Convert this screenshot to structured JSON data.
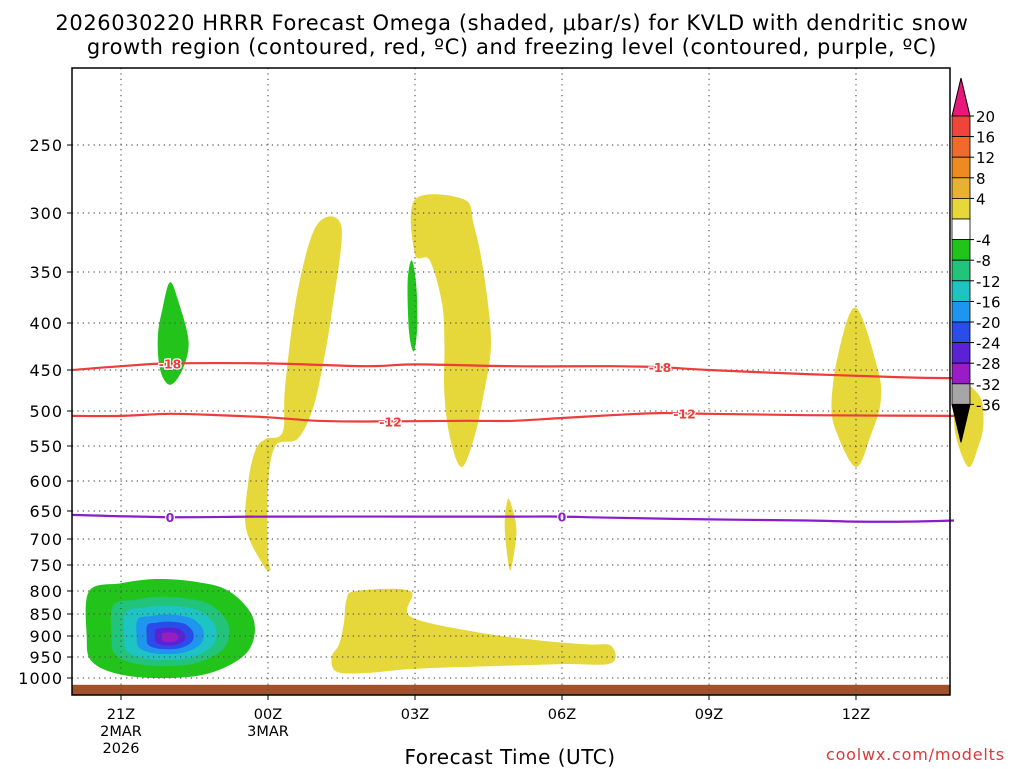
{
  "title_line1": "2026030220 HRRR Forecast Omega (shaded, μbar/s) for KVLD with dendritic snow",
  "title_line2": "growth region (contoured, red, ºC) and freezing level (contoured, purple, ºC)",
  "x_axis_label": "Forecast Time (UTC)",
  "credit": "coolwx.com/modelts",
  "chart_data": {
    "type": "time-height cross section (shaded + contours)",
    "x_unit": "forecast hour from 20Z 2 Mar 2026",
    "x_range": [
      0,
      18
    ],
    "y_unit": "hPa",
    "y_range": [
      1000,
      200
    ],
    "y_ticks": [
      250,
      300,
      350,
      400,
      450,
      500,
      550,
      600,
      650,
      700,
      750,
      800,
      850,
      900,
      950,
      1000
    ],
    "x_ticks": [
      {
        "hour": 1,
        "lines": [
          "21Z",
          "2MAR",
          "2026"
        ]
      },
      {
        "hour": 4,
        "lines": [
          "00Z",
          "3MAR"
        ]
      },
      {
        "hour": 7,
        "lines": [
          "03Z"
        ]
      },
      {
        "hour": 10,
        "lines": [
          "06Z"
        ]
      },
      {
        "hour": 13,
        "lines": [
          "09Z"
        ]
      },
      {
        "hour": 16,
        "lines": [
          "12Z"
        ]
      }
    ],
    "colorbar": {
      "labels": [
        "20",
        "16",
        "12",
        "8",
        "4",
        "-4",
        "-8",
        "-12",
        "-16",
        "-20",
        "-24",
        "-28",
        "-32",
        "-36"
      ],
      "bins": [
        {
          "color": "#e8177a",
          "range": "> 20",
          "shape": "triangle-top"
        },
        {
          "color": "#f0443a",
          "range": "16 to 20"
        },
        {
          "color": "#f06a2c",
          "range": "12 to 16"
        },
        {
          "color": "#ee8a22",
          "range": "8 to 12"
        },
        {
          "color": "#e8b22e",
          "range": "4 to 8"
        },
        {
          "color": "#e6d83a",
          "range": "-4 to 4 band edge"
        },
        {
          "color": "#ffffff",
          "range": "-4 to 4"
        },
        {
          "color": "#22c41c",
          "range": "-8 to -4"
        },
        {
          "color": "#22c37a",
          "range": "-12 to -8"
        },
        {
          "color": "#1ec4c4",
          "range": "-16 to -12"
        },
        {
          "color": "#1e96ee",
          "range": "-20 to -16"
        },
        {
          "color": "#2a4ce8",
          "range": "-24 to -20"
        },
        {
          "color": "#5a22d4",
          "range": "-28 to -24"
        },
        {
          "color": "#9a1cc6",
          "range": "-32 to -28"
        },
        {
          "color": "#a6a6a6",
          "range": "-36 to -32"
        },
        {
          "color": "#000000",
          "range": "< -36",
          "shape": "triangle-bottom"
        }
      ]
    },
    "contours": [
      {
        "name": "dgz-18C",
        "label": "-18",
        "color": "#ee3b3b",
        "label_hours": [
          2.0,
          12.0
        ],
        "points": [
          [
            0,
            450
          ],
          [
            1,
            446
          ],
          [
            2,
            443
          ],
          [
            4,
            443
          ],
          [
            6,
            446
          ],
          [
            7,
            444
          ],
          [
            9,
            446
          ],
          [
            11,
            446
          ],
          [
            12,
            447
          ],
          [
            13,
            450
          ],
          [
            15,
            455
          ],
          [
            17,
            459
          ],
          [
            18,
            460
          ]
        ]
      },
      {
        "name": "dgz-12C",
        "label": "-12",
        "color": "#ee3b3b",
        "label_hours": [
          6.5,
          12.5
        ],
        "points": [
          [
            0,
            507
          ],
          [
            1,
            507
          ],
          [
            2,
            504
          ],
          [
            3,
            506
          ],
          [
            4,
            509
          ],
          [
            5,
            514
          ],
          [
            6,
            515
          ],
          [
            8,
            514
          ],
          [
            9,
            514
          ],
          [
            10,
            510
          ],
          [
            11,
            506
          ],
          [
            12,
            503
          ],
          [
            13,
            504
          ],
          [
            15,
            506
          ],
          [
            18,
            507
          ]
        ]
      },
      {
        "name": "freezing-level",
        "label": "0",
        "color": "#8b1cc8",
        "label_hours": [
          2.0,
          10.0
        ],
        "points": [
          [
            0,
            657
          ],
          [
            2,
            661
          ],
          [
            4,
            660
          ],
          [
            7,
            660
          ],
          [
            9,
            660
          ],
          [
            10,
            660
          ],
          [
            11,
            662
          ],
          [
            13,
            665
          ],
          [
            15,
            667
          ],
          [
            16,
            669
          ],
          [
            17,
            669
          ],
          [
            18,
            667
          ]
        ]
      }
    ],
    "shaded_regions": [
      {
        "name": "ascent-green-upper-left",
        "omega_bin": "-8 to -4",
        "color": "#22c41c",
        "polygon": [
          [
            2.0,
            360
          ],
          [
            2.18,
            380
          ],
          [
            2.38,
            420
          ],
          [
            2.25,
            450
          ],
          [
            2.0,
            468
          ],
          [
            1.8,
            450
          ],
          [
            1.75,
            415
          ],
          [
            1.85,
            385
          ]
        ]
      },
      {
        "name": "ascent-green-0300",
        "omega_bin": "-8 to -4",
        "color": "#22c41c",
        "polygon": [
          [
            6.93,
            340
          ],
          [
            7.02,
            360
          ],
          [
            7.05,
            400
          ],
          [
            6.98,
            430
          ],
          [
            6.88,
            410
          ],
          [
            6.85,
            360
          ]
        ]
      },
      {
        "name": "descent-yellow-column-0000",
        "omega_bin": "4 to 8",
        "color": "#e6d83a",
        "polygon": [
          [
            5.0,
            310
          ],
          [
            5.5,
            312
          ],
          [
            5.3,
            390
          ],
          [
            5.1,
            450
          ],
          [
            4.9,
            500
          ],
          [
            4.6,
            540
          ],
          [
            4.15,
            550
          ],
          [
            4.0,
            610
          ],
          [
            4.0,
            730
          ],
          [
            4.05,
            760
          ],
          [
            3.9,
            750
          ],
          [
            3.55,
            680
          ],
          [
            3.6,
            600
          ],
          [
            3.75,
            555
          ],
          [
            3.95,
            540
          ],
          [
            4.3,
            530
          ],
          [
            4.35,
            470
          ],
          [
            4.6,
            370
          ]
        ]
      },
      {
        "name": "descent-yellow-0500",
        "omega_bin": "4 to 8",
        "color": "#e6d83a",
        "polygon": [
          [
            8.9,
            630
          ],
          [
            9.0,
            650
          ],
          [
            9.07,
            690
          ],
          [
            8.95,
            760
          ],
          [
            8.87,
            720
          ],
          [
            8.83,
            670
          ]
        ]
      },
      {
        "name": "descent-yellow-column-0800",
        "omega_bin": "4 to 8",
        "color": "#e6d83a",
        "polygon": [
          [
            7.0,
            290
          ],
          [
            8.0,
            290
          ],
          [
            8.2,
            310
          ],
          [
            8.4,
            350
          ],
          [
            8.55,
            420
          ],
          [
            8.4,
            480
          ],
          [
            8.2,
            540
          ],
          [
            7.95,
            580
          ],
          [
            7.72,
            540
          ],
          [
            7.6,
            480
          ],
          [
            7.6,
            420
          ],
          [
            7.55,
            380
          ],
          [
            7.3,
            340
          ],
          [
            7.0,
            335
          ]
        ]
      },
      {
        "name": "descent-yellow-1100",
        "omega_bin": "4 to 8",
        "color": "#e6d83a",
        "polygon": [
          [
            16.0,
            385
          ],
          [
            16.45,
            450
          ],
          [
            16.5,
            490
          ],
          [
            16.3,
            535
          ],
          [
            16.0,
            580
          ],
          [
            15.6,
            530
          ],
          [
            15.5,
            490
          ],
          [
            15.65,
            430
          ]
        ]
      },
      {
        "name": "descent-yellow-1300",
        "omega_bin": "4 to 8",
        "color": "#e6d83a",
        "polygon": [
          [
            18.25,
            468
          ],
          [
            18.55,
            485
          ],
          [
            18.6,
            520
          ],
          [
            18.5,
            550
          ],
          [
            18.3,
            580
          ],
          [
            18.05,
            540
          ],
          [
            18.0,
            500
          ],
          [
            18.08,
            480
          ]
        ]
      },
      {
        "name": "descent-yellow-lowlevel",
        "omega_bin": "4 to 8",
        "color": "#e6d83a",
        "polygon": [
          [
            5.8,
            800
          ],
          [
            6.9,
            800
          ],
          [
            6.9,
            855
          ],
          [
            8.2,
            890
          ],
          [
            9.5,
            910
          ],
          [
            10.5,
            920
          ],
          [
            11.0,
            923
          ],
          [
            11.0,
            965
          ],
          [
            10.0,
            967
          ],
          [
            8.5,
            972
          ],
          [
            7.0,
            978
          ],
          [
            6.0,
            988
          ],
          [
            5.4,
            985
          ],
          [
            5.3,
            950
          ],
          [
            5.45,
            920
          ],
          [
            5.55,
            870
          ],
          [
            5.6,
            820
          ]
        ]
      }
    ],
    "ascent_maximum": {
      "name": "low-level-ascent-core",
      "hour": 2.0,
      "pressure": 905,
      "peak_omega_bin": "-32 to -28",
      "nested_bins_outer_to_inner": [
        {
          "bin": "-8 to -4",
          "color": "#22c41c"
        },
        {
          "bin": "-12 to -8",
          "color": "#22c37a"
        },
        {
          "bin": "-16 to -12",
          "color": "#1ec4c4"
        },
        {
          "bin": "-20 to -16",
          "color": "#1e96ee"
        },
        {
          "bin": "-24 to -20",
          "color": "#2a4ce8"
        },
        {
          "bin": "-28 to -24",
          "color": "#5a22d4"
        },
        {
          "bin": "-32 to -28",
          "color": "#9a1cc6"
        }
      ]
    },
    "surface": {
      "color": "#a0522d",
      "pressure_top": 1010,
      "pressure_bottom": 1025
    }
  }
}
